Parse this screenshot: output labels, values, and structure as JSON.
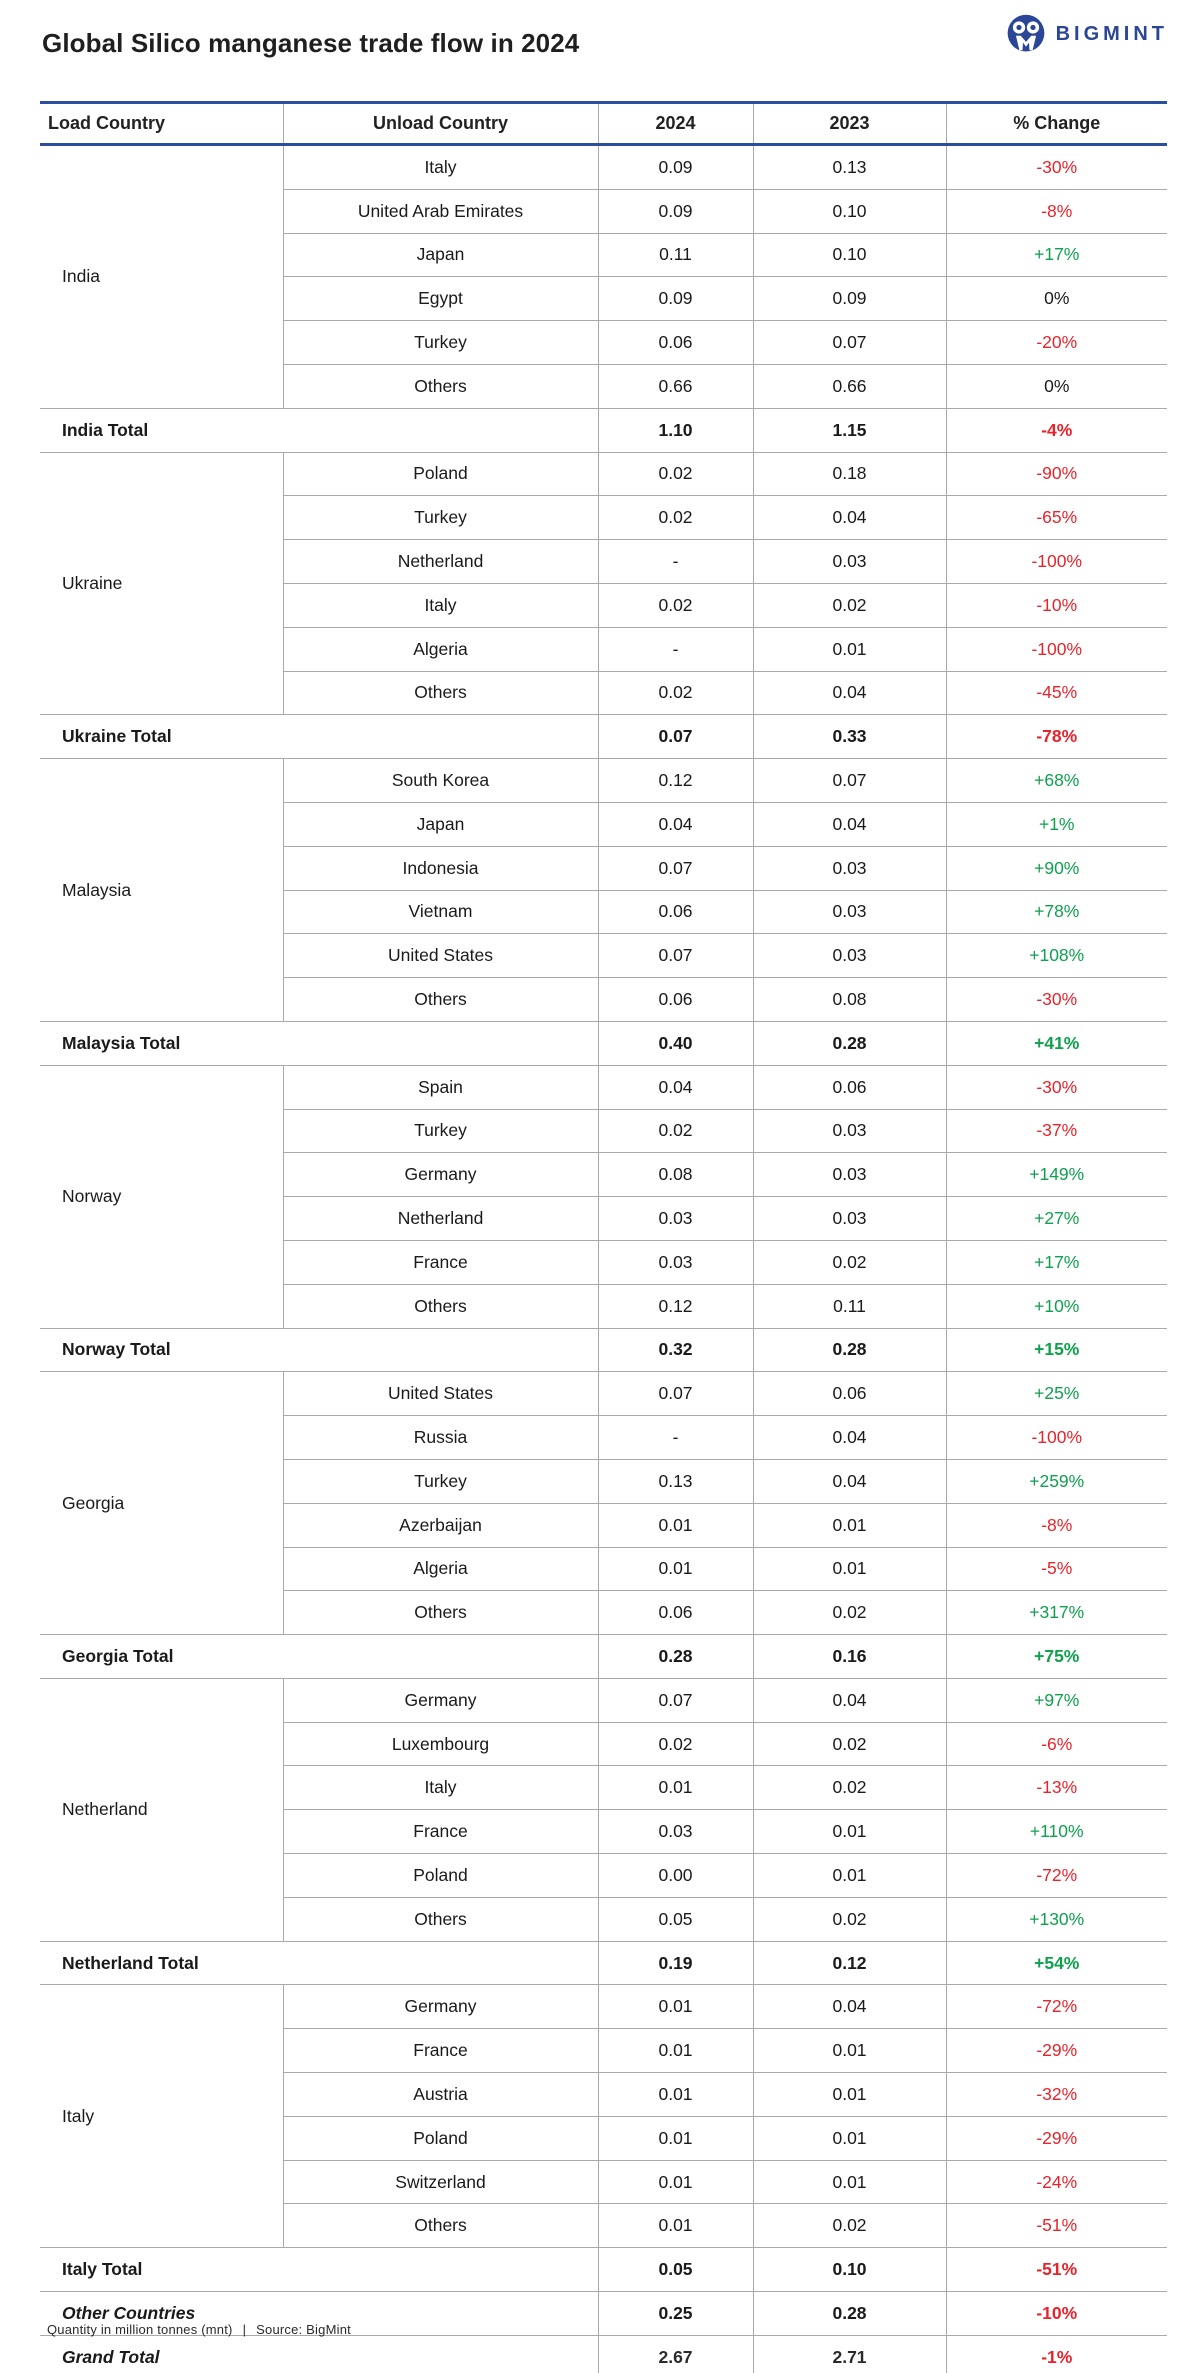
{
  "logo": {
    "brand": "BIGMINT",
    "icon": "bigmint-owl-icon"
  },
  "chart_data": {
    "type": "table",
    "title": "Global Silico manganese trade flow in 2024",
    "columns": [
      "Load Country",
      "Unload Country",
      "2024",
      "2023",
      "% Change"
    ],
    "row_format": [
      "unload_country",
      "value_2024",
      "value_2023",
      "pct_change"
    ],
    "sections": [
      {
        "load": "India",
        "rows": [
          [
            "Italy",
            "0.09",
            "0.13",
            "-30%"
          ],
          [
            "United Arab Emirates",
            "0.09",
            "0.10",
            "-8%"
          ],
          [
            "Japan",
            "0.11",
            "0.10",
            "+17%"
          ],
          [
            "Egypt",
            "0.09",
            "0.09",
            "0%"
          ],
          [
            "Turkey",
            "0.06",
            "0.07",
            "-20%"
          ],
          [
            "Others",
            "0.66",
            "0.66",
            "0%"
          ]
        ],
        "total": {
          "label": "India Total",
          "v2024": "1.10",
          "v2023": "1.15",
          "change": "-4%"
        }
      },
      {
        "load": "Ukraine",
        "rows": [
          [
            "Poland",
            "0.02",
            "0.18",
            "-90%"
          ],
          [
            "Turkey",
            "0.02",
            "0.04",
            "-65%"
          ],
          [
            "Netherland",
            "-",
            "0.03",
            "-100%"
          ],
          [
            "Italy",
            "0.02",
            "0.02",
            "-10%"
          ],
          [
            "Algeria",
            "-",
            "0.01",
            "-100%"
          ],
          [
            "Others",
            "0.02",
            "0.04",
            "-45%"
          ]
        ],
        "total": {
          "label": "Ukraine Total",
          "v2024": "0.07",
          "v2023": "0.33",
          "change": "-78%"
        }
      },
      {
        "load": "Malaysia",
        "rows": [
          [
            "South Korea",
            "0.12",
            "0.07",
            "+68%"
          ],
          [
            "Japan",
            "0.04",
            "0.04",
            "+1%"
          ],
          [
            "Indonesia",
            "0.07",
            "0.03",
            "+90%"
          ],
          [
            "Vietnam",
            "0.06",
            "0.03",
            "+78%"
          ],
          [
            "United States",
            "0.07",
            "0.03",
            "+108%"
          ],
          [
            "Others",
            "0.06",
            "0.08",
            "-30%"
          ]
        ],
        "total": {
          "label": "Malaysia Total",
          "v2024": "0.40",
          "v2023": "0.28",
          "change": "+41%"
        }
      },
      {
        "load": "Norway",
        "rows": [
          [
            "Spain",
            "0.04",
            "0.06",
            "-30%"
          ],
          [
            "Turkey",
            "0.02",
            "0.03",
            "-37%"
          ],
          [
            "Germany",
            "0.08",
            "0.03",
            "+149%"
          ],
          [
            "Netherland",
            "0.03",
            "0.03",
            "+27%"
          ],
          [
            "France",
            "0.03",
            "0.02",
            "+17%"
          ],
          [
            "Others",
            "0.12",
            "0.11",
            "+10%"
          ]
        ],
        "total": {
          "label": "Norway Total",
          "v2024": "0.32",
          "v2023": "0.28",
          "change": "+15%"
        }
      },
      {
        "load": "Georgia",
        "rows": [
          [
            "United States",
            "0.07",
            "0.06",
            "+25%"
          ],
          [
            "Russia",
            "-",
            "0.04",
            "-100%"
          ],
          [
            "Turkey",
            "0.13",
            "0.04",
            "+259%"
          ],
          [
            "Azerbaijan",
            "0.01",
            "0.01",
            "-8%"
          ],
          [
            "Algeria",
            "0.01",
            "0.01",
            "-5%"
          ],
          [
            "Others",
            "0.06",
            "0.02",
            "+317%"
          ]
        ],
        "total": {
          "label": "Georgia Total",
          "v2024": "0.28",
          "v2023": "0.16",
          "change": "+75%"
        }
      },
      {
        "load": "Netherland",
        "rows": [
          [
            "Germany",
            "0.07",
            "0.04",
            "+97%"
          ],
          [
            "Luxembourg",
            "0.02",
            "0.02",
            "-6%"
          ],
          [
            "Italy",
            "0.01",
            "0.02",
            "-13%"
          ],
          [
            "France",
            "0.03",
            "0.01",
            "+110%"
          ],
          [
            "Poland",
            "0.00",
            "0.01",
            "-72%"
          ],
          [
            "Others",
            "0.05",
            "0.02",
            "+130%"
          ]
        ],
        "total": {
          "label": "Netherland Total",
          "v2024": "0.19",
          "v2023": "0.12",
          "change": "+54%"
        }
      },
      {
        "load": "Italy",
        "rows": [
          [
            "Germany",
            "0.01",
            "0.04",
            "-72%"
          ],
          [
            "France",
            "0.01",
            "0.01",
            "-29%"
          ],
          [
            "Austria",
            "0.01",
            "0.01",
            "-32%"
          ],
          [
            "Poland",
            "0.01",
            "0.01",
            "-29%"
          ],
          [
            "Switzerland",
            "0.01",
            "0.01",
            "-24%"
          ],
          [
            "Others",
            "0.01",
            "0.02",
            "-51%"
          ]
        ],
        "total": {
          "label": "Italy Total",
          "v2024": "0.05",
          "v2023": "0.10",
          "change": "-51%"
        }
      }
    ],
    "summary": [
      {
        "label": "Other Countries",
        "v2024": "0.25",
        "v2023": "0.28",
        "change": "-10%",
        "values_bold": true
      },
      {
        "label": "Grand Total",
        "v2024": "2.67",
        "v2023": "2.71",
        "change": "-1%",
        "values_bold": false
      }
    ]
  },
  "footer": {
    "note": "Quantity in million tonnes (mnt)",
    "separator": "|",
    "source": "Source: BigMint"
  },
  "colors": {
    "accent_blue": "#2b4ea2",
    "logo_navy": "#2b4697",
    "negative_red": "#e8232b",
    "positive_green": "#0fa04e",
    "grid_gray": "#a9a9a9",
    "text": "#1a1a1a"
  }
}
